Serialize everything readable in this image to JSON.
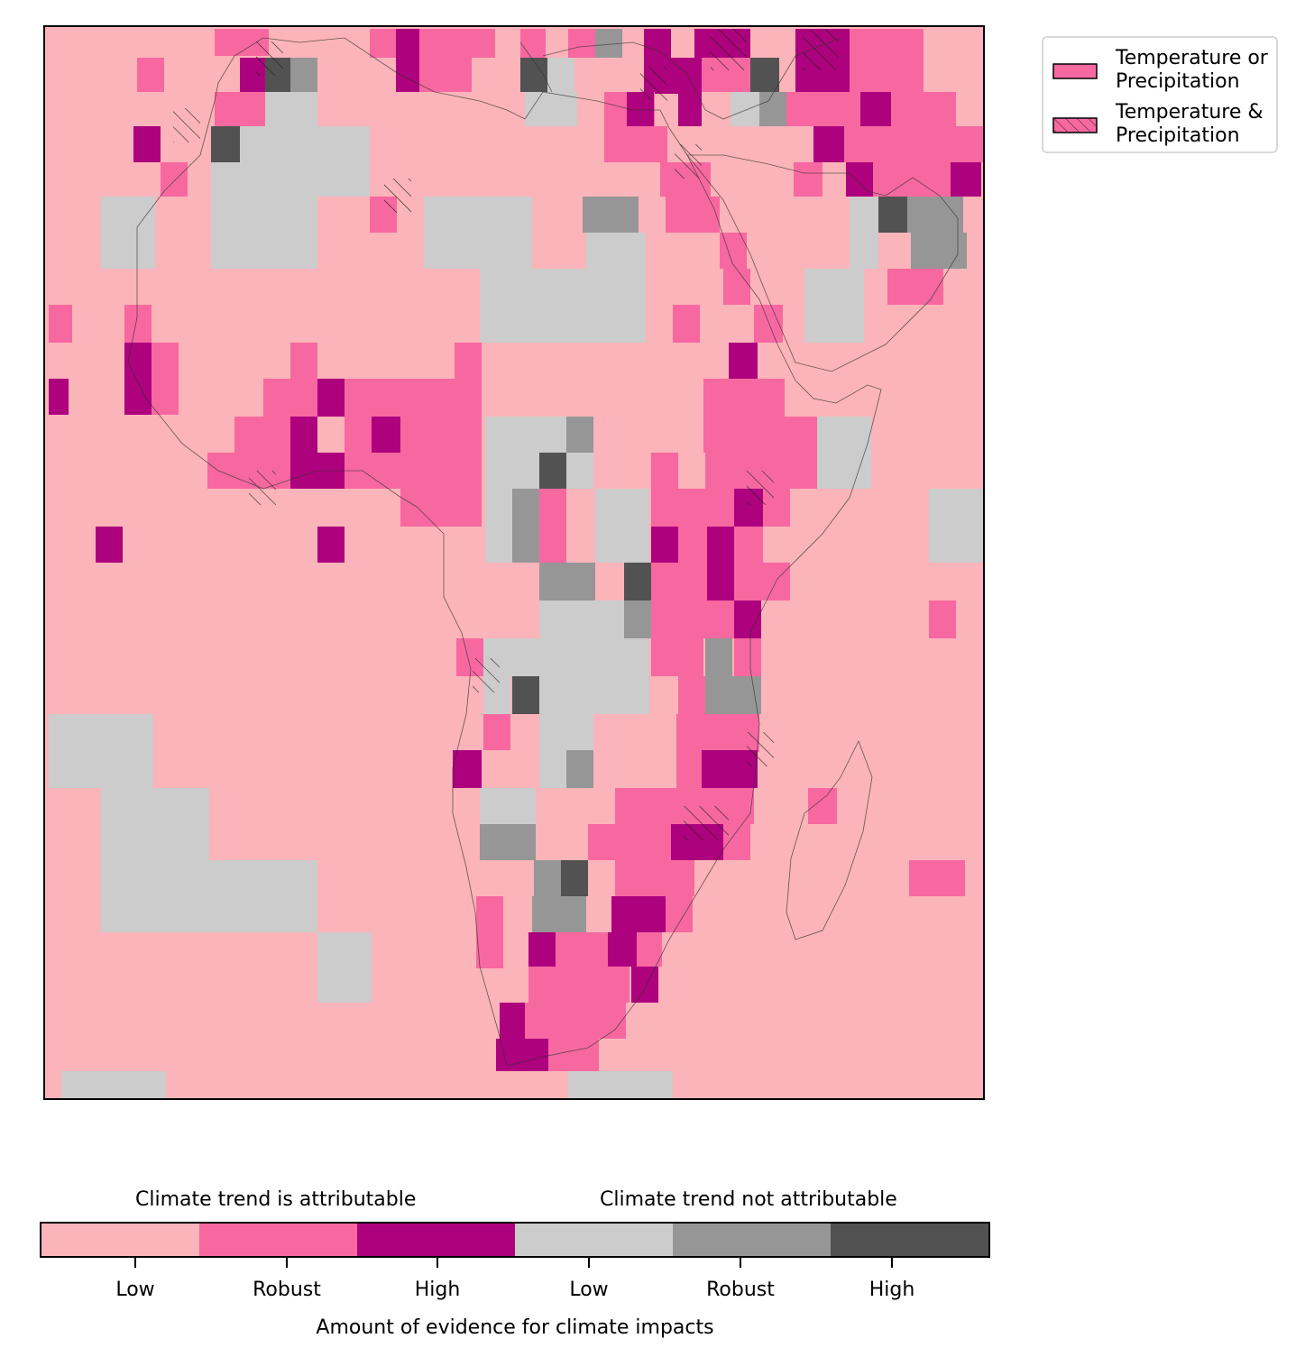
{
  "legend": {
    "items": [
      {
        "line1": "Temperature or",
        "line2": "Precipitation",
        "pattern": "solid"
      },
      {
        "line1": "Temperature &",
        "line2": "Precipitation",
        "pattern": "hatched"
      }
    ]
  },
  "colorbar": {
    "title_left": "Climate trend is attributable",
    "title_right": "Climate trend not attributable",
    "xlabel": "Amount of evidence for climate impacts",
    "segments": [
      {
        "label": "Low",
        "color": "#fbb4b9",
        "group": "attributable"
      },
      {
        "label": "Robust",
        "color": "#f768a1",
        "group": "attributable"
      },
      {
        "label": "High",
        "color": "#ae017e",
        "group": "attributable"
      },
      {
        "label": "Low",
        "color": "#cccccc",
        "group": "not attributable"
      },
      {
        "label": "Robust",
        "color": "#969696",
        "group": "not attributable"
      },
      {
        "label": "High",
        "color": "#525252",
        "group": "not attributable"
      }
    ]
  },
  "map": {
    "region": "Africa",
    "background_category": 0
  }
}
